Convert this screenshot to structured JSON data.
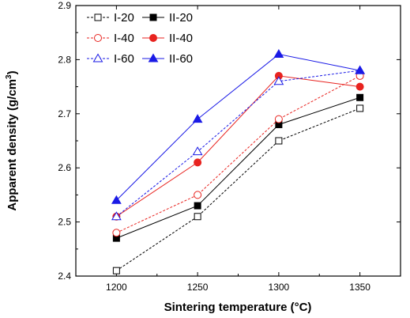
{
  "chart_data": {
    "type": "line",
    "title": "",
    "xlabel": "Sintering temperature (°C)",
    "ylabel_main": "Apparent density (g/cm",
    "ylabel_sup": "3",
    "ylabel_end": ")",
    "x": [
      1200,
      1250,
      1300,
      1350
    ],
    "x_ticks": [
      "1200",
      "1250",
      "1300",
      "1350"
    ],
    "y_ticks": [
      "2.4",
      "2.5",
      "2.6",
      "2.7",
      "2.8",
      "2.9"
    ],
    "xlim": [
      1175,
      1375
    ],
    "ylim": [
      2.4,
      2.9
    ],
    "grid": false,
    "legend_position": "top-left",
    "series": [
      {
        "name": "I-20",
        "values": [
          2.41,
          2.51,
          2.65,
          2.71
        ],
        "color": "#000000",
        "marker": "square",
        "filled": false,
        "dashed": true
      },
      {
        "name": "II-20",
        "values": [
          2.47,
          2.53,
          2.68,
          2.73
        ],
        "color": "#000000",
        "marker": "square",
        "filled": true,
        "dashed": false
      },
      {
        "name": "I-40",
        "values": [
          2.48,
          2.55,
          2.69,
          2.77
        ],
        "color": "#e8231f",
        "marker": "circle",
        "filled": false,
        "dashed": true
      },
      {
        "name": "II-40",
        "values": [
          2.51,
          2.61,
          2.77,
          2.75
        ],
        "color": "#e8231f",
        "marker": "circle",
        "filled": true,
        "dashed": false
      },
      {
        "name": "I-60",
        "values": [
          2.51,
          2.63,
          2.76,
          2.78
        ],
        "color": "#1a1ae6",
        "marker": "triangle",
        "filled": false,
        "dashed": true
      },
      {
        "name": "II-60",
        "values": [
          2.54,
          2.69,
          2.81,
          2.78
        ],
        "color": "#1a1ae6",
        "marker": "triangle",
        "filled": true,
        "dashed": false
      }
    ]
  }
}
